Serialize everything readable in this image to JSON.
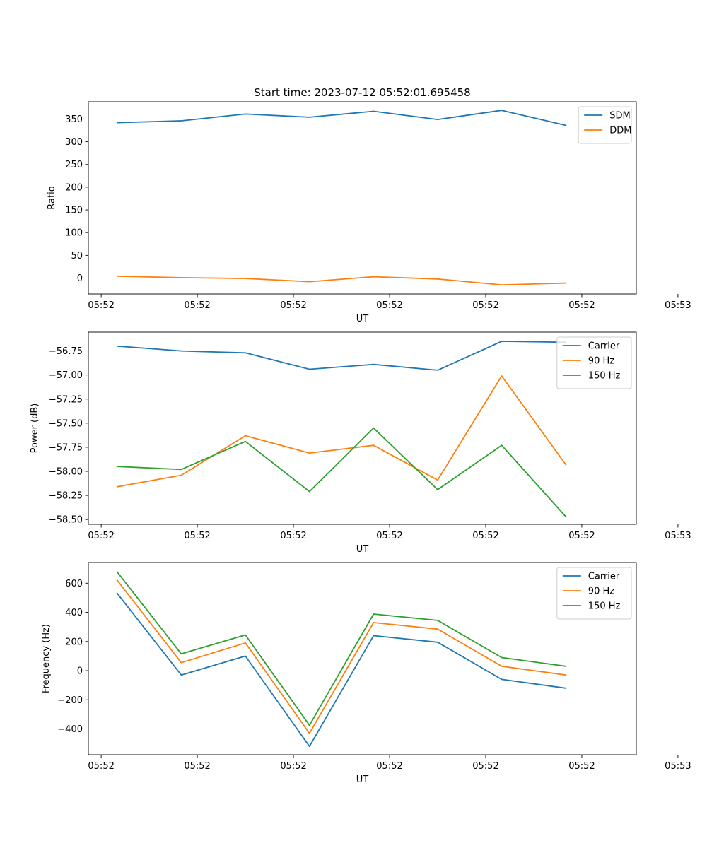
{
  "chart_data": [
    {
      "type": "line",
      "title": "Start time: 2023-07-12 05:52:01.695458",
      "xlabel": "UT",
      "ylabel": "Ratio",
      "x": [
        1,
        2,
        3,
        4,
        5,
        6,
        7,
        8
      ],
      "xlim": [
        0.55,
        9.1
      ],
      "xticks": [
        0.75,
        2.25,
        3.75,
        5.25,
        6.75,
        8.25,
        9.75
      ],
      "xtick_labels": [
        "05:52",
        "05:52",
        "05:52",
        "05:52",
        "05:52",
        "05:52",
        "05:53"
      ],
      "ylim": [
        -35,
        388
      ],
      "yticks": [
        0,
        50,
        100,
        150,
        200,
        250,
        300,
        350
      ],
      "ytick_labels": [
        "0",
        "50",
        "100",
        "150",
        "200",
        "250",
        "300",
        "350"
      ],
      "legend_location": "top-right",
      "series": [
        {
          "name": "SDM",
          "color": "#1f77b4",
          "values": [
            342,
            346,
            361,
            354,
            367,
            349,
            369,
            336
          ]
        },
        {
          "name": "DDM",
          "color": "#ff7f0e",
          "values": [
            4,
            1,
            -1,
            -8,
            3,
            -2,
            -15,
            -11
          ]
        }
      ]
    },
    {
      "type": "line",
      "title": "",
      "xlabel": "UT",
      "ylabel": "Power (dB)",
      "x": [
        1,
        2,
        3,
        4,
        5,
        6,
        7,
        8
      ],
      "xlim": [
        0.55,
        9.1
      ],
      "xticks": [
        0.75,
        2.25,
        3.75,
        5.25,
        6.75,
        8.25,
        9.75
      ],
      "xtick_labels": [
        "05:52",
        "05:52",
        "05:52",
        "05:52",
        "05:52",
        "05:52",
        "05:53"
      ],
      "ylim": [
        -58.55,
        -56.555
      ],
      "yticks": [
        -58.5,
        -58.25,
        -58.0,
        -57.75,
        -57.5,
        -57.25,
        -57.0,
        -56.75
      ],
      "ytick_labels": [
        "−58.50",
        "−58.25",
        "−58.00",
        "−57.75",
        "−57.50",
        "−57.25",
        "−57.00",
        "−56.75"
      ],
      "legend_location": "top-right",
      "series": [
        {
          "name": "Carrier",
          "color": "#1f77b4",
          "values": [
            -56.7,
            -56.75,
            -56.77,
            -56.94,
            -56.89,
            -56.95,
            -56.65,
            -56.66
          ]
        },
        {
          "name": "90 Hz",
          "color": "#ff7f0e",
          "values": [
            -58.16,
            -58.04,
            -57.63,
            -57.81,
            -57.73,
            -58.09,
            -57.01,
            -57.93
          ]
        },
        {
          "name": "150 Hz",
          "color": "#2ca02c",
          "values": [
            -57.95,
            -57.98,
            -57.69,
            -58.21,
            -57.55,
            -58.19,
            -57.73,
            -58.47
          ]
        }
      ]
    },
    {
      "type": "line",
      "title": "",
      "xlabel": "UT",
      "ylabel": "Frequency (Hz)",
      "x": [
        1,
        2,
        3,
        4,
        5,
        6,
        7,
        8
      ],
      "xlim": [
        0.55,
        9.1
      ],
      "xticks": [
        0.75,
        2.25,
        3.75,
        5.25,
        6.75,
        8.25,
        9.75
      ],
      "xtick_labels": [
        "05:52",
        "05:52",
        "05:52",
        "05:52",
        "05:52",
        "05:52",
        "05:53"
      ],
      "ylim": [
        -577,
        742
      ],
      "yticks": [
        -400,
        -200,
        0,
        200,
        400,
        600
      ],
      "ytick_labels": [
        "−400",
        "−200",
        "0",
        "200",
        "400",
        "600"
      ],
      "legend_location": "top-right",
      "series": [
        {
          "name": "Carrier",
          "color": "#1f77b4",
          "values": [
            530,
            -30,
            100,
            -520,
            240,
            195,
            -60,
            -120
          ]
        },
        {
          "name": "90 Hz",
          "color": "#ff7f0e",
          "values": [
            620,
            55,
            190,
            -430,
            330,
            285,
            30,
            -30
          ]
        },
        {
          "name": "150 Hz",
          "color": "#2ca02c",
          "values": [
            677,
            115,
            245,
            -375,
            388,
            345,
            90,
            30
          ]
        }
      ]
    }
  ]
}
